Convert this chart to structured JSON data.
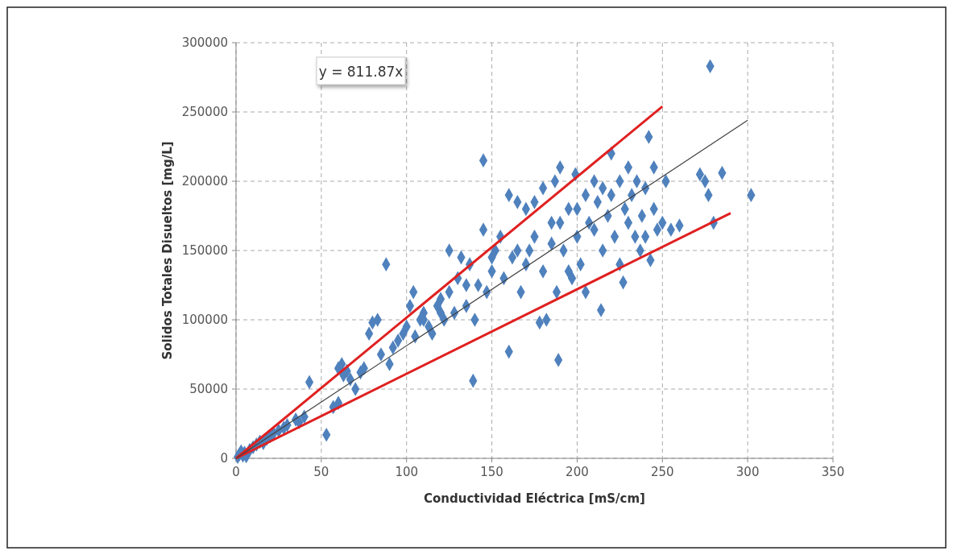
{
  "chart_data": {
    "type": "scatter",
    "xlabel": "Conductividad Eléctrica [mS/cm]",
    "ylabel": "Solidos Totales Disueltos [mg/L]",
    "annotations": [
      "y = 811.87x"
    ],
    "xlim": [
      0,
      350
    ],
    "ylim": [
      0,
      300000
    ],
    "xticks": [
      0,
      50,
      100,
      150,
      200,
      250,
      300,
      350
    ],
    "yticks": [
      0,
      50000,
      100000,
      150000,
      200000,
      250000,
      300000
    ],
    "grid": true,
    "series": [
      {
        "marker": "diamond",
        "color": "#4f81bd",
        "x": [
          1,
          2,
          3,
          4,
          5,
          6,
          8,
          10,
          12,
          14,
          16,
          18,
          20,
          22,
          25,
          28,
          30,
          35,
          37,
          40,
          43,
          53,
          57,
          60,
          60,
          62,
          63,
          65,
          67,
          70,
          73,
          75,
          78,
          80,
          83,
          85,
          88,
          90,
          92,
          95,
          98,
          100,
          102,
          104,
          105,
          108,
          110,
          113,
          115,
          118,
          120,
          122,
          125,
          125,
          128,
          130,
          132,
          135,
          137,
          139,
          140,
          142,
          145,
          145,
          147,
          150,
          152,
          155,
          157,
          160,
          160,
          162,
          165,
          167,
          170,
          172,
          175,
          178,
          180,
          180,
          182,
          185,
          187,
          188,
          189,
          190,
          192,
          195,
          197,
          199,
          200,
          202,
          205,
          207,
          210,
          212,
          214,
          215,
          218,
          220,
          222,
          225,
          225,
          227,
          228,
          230,
          232,
          234,
          235,
          237,
          238,
          240,
          242,
          243,
          245,
          247,
          250,
          252,
          255,
          260,
          272,
          275,
          277,
          278,
          280,
          285,
          302,
          110,
          120,
          135,
          150,
          165,
          170,
          190,
          200,
          210,
          220,
          230,
          240,
          205,
          195,
          215,
          185,
          175,
          245
        ],
        "values": [
          1000,
          3000,
          5000,
          2000,
          4000,
          1500,
          6000,
          8000,
          10000,
          12000,
          11000,
          14000,
          16000,
          18000,
          20000,
          22000,
          24000,
          28000,
          26000,
          30000,
          55000,
          17000,
          37000,
          40000,
          65000,
          68000,
          60000,
          63000,
          57000,
          50000,
          62000,
          65000,
          90000,
          98000,
          100000,
          75000,
          140000,
          68000,
          80000,
          85000,
          90000,
          95000,
          110000,
          120000,
          88000,
          100000,
          105000,
          95000,
          90000,
          110000,
          115000,
          100000,
          150000,
          120000,
          105000,
          130000,
          145000,
          110000,
          140000,
          56000,
          100000,
          125000,
          215000,
          165000,
          120000,
          135000,
          150000,
          160000,
          130000,
          190000,
          77000,
          145000,
          185000,
          120000,
          180000,
          150000,
          160000,
          98000,
          195000,
          135000,
          100000,
          170000,
          200000,
          120000,
          71000,
          210000,
          150000,
          180000,
          130000,
          205000,
          160000,
          140000,
          190000,
          170000,
          200000,
          185000,
          107000,
          150000,
          175000,
          220000,
          160000,
          140000,
          200000,
          127000,
          180000,
          210000,
          190000,
          160000,
          200000,
          150000,
          175000,
          195000,
          232000,
          143000,
          180000,
          165000,
          170000,
          200000,
          165000,
          168000,
          205000,
          200000,
          190000,
          283000,
          170000,
          206000,
          190000,
          100000,
          105000,
          125000,
          145000,
          150000,
          140000,
          170000,
          180000,
          165000,
          190000,
          170000,
          160000,
          120000,
          135000,
          195000,
          155000,
          185000,
          210000
        ]
      },
      {
        "type": "line",
        "marker": "none",
        "color": "#e02020",
        "x": [
          0,
          250
        ],
        "values": [
          0,
          254000
        ]
      },
      {
        "type": "line",
        "marker": "none",
        "color": "#e02020",
        "x": [
          0,
          290
        ],
        "values": [
          0,
          177000
        ]
      },
      {
        "type": "line",
        "marker": "none",
        "color": "#404040",
        "x": [
          0,
          300
        ],
        "values": [
          0,
          244000
        ]
      }
    ]
  }
}
